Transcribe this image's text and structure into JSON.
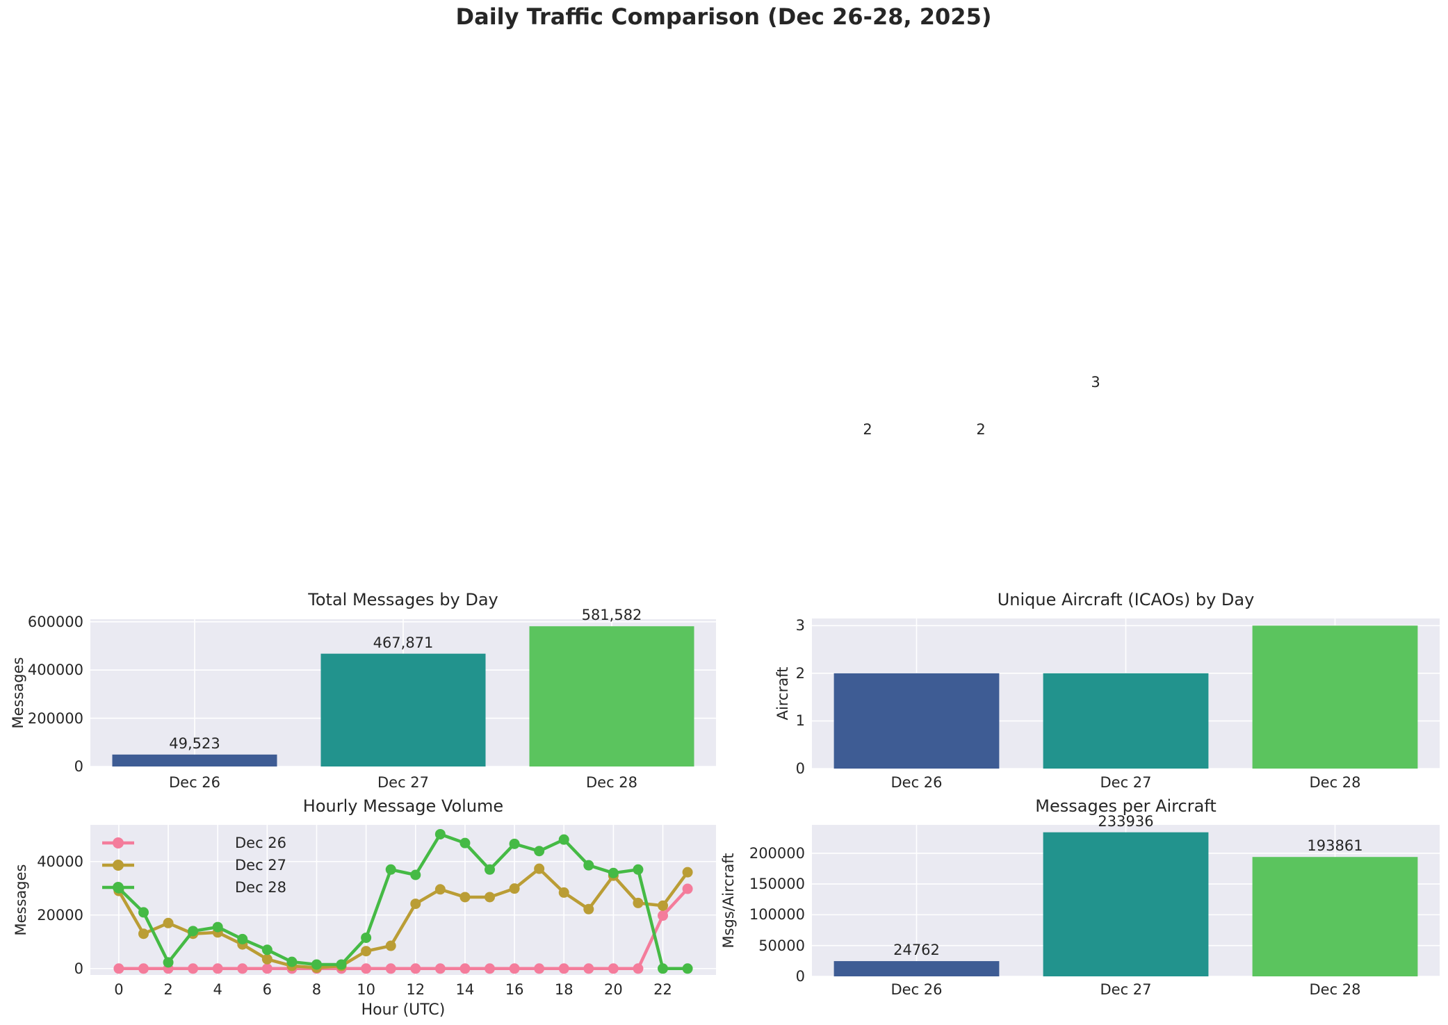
{
  "page_title": "Daily Traffic Comparison (Dec 26-28, 2025)",
  "floating_labels": [
    "2",
    "2",
    "3"
  ],
  "colors": {
    "figure_bg": "#FFFFFF",
    "plot_bg": "#EAEAF2",
    "grid": "#FFFFFF",
    "text": "#262626",
    "bar_palette": [
      "#3E5C94",
      "#22938D",
      "#5BC45E"
    ]
  },
  "chart_data": [
    {
      "id": "total_messages",
      "type": "bar",
      "title": "Total Messages by Day",
      "ylabel": "Messages",
      "categories": [
        "Dec 26",
        "Dec 27",
        "Dec 28"
      ],
      "values": [
        49523,
        467871,
        581582
      ],
      "value_labels": [
        "49,523",
        "467,871",
        "581,582"
      ],
      "yticks": [
        {
          "v": 0,
          "label": "0"
        },
        {
          "v": 200000,
          "label": "200000"
        },
        {
          "v": 400000,
          "label": "400000"
        },
        {
          "v": 600000,
          "label": "600000"
        }
      ],
      "ylim": [
        0,
        611000
      ],
      "grid": true
    },
    {
      "id": "unique_aircraft",
      "type": "bar",
      "title": "Unique Aircraft (ICAOs) by Day",
      "ylabel": "Aircraft",
      "categories": [
        "Dec 26",
        "Dec 27",
        "Dec 28"
      ],
      "values": [
        2,
        2,
        3
      ],
      "value_labels": [],
      "yticks": [
        {
          "v": 0,
          "label": "0"
        },
        {
          "v": 1,
          "label": "1"
        },
        {
          "v": 2,
          "label": "2"
        },
        {
          "v": 3,
          "label": "3"
        }
      ],
      "ylim": [
        0,
        3.15
      ],
      "grid": true,
      "note": "value labels 2, 2, 3 rendered detached far above the axes (see floating_labels)"
    },
    {
      "id": "hourly",
      "type": "line",
      "title": "Hourly Message Volume",
      "xlabel": "Hour (UTC)",
      "ylabel": "Messages",
      "x": [
        0,
        1,
        2,
        3,
        4,
        5,
        6,
        7,
        8,
        9,
        10,
        11,
        12,
        13,
        14,
        15,
        16,
        17,
        18,
        19,
        20,
        21,
        22,
        23
      ],
      "xticks": [
        {
          "v": 0,
          "label": "0"
        },
        {
          "v": 2,
          "label": "2"
        },
        {
          "v": 4,
          "label": "4"
        },
        {
          "v": 6,
          "label": "6"
        },
        {
          "v": 8,
          "label": "8"
        },
        {
          "v": 10,
          "label": "10"
        },
        {
          "v": 12,
          "label": "12"
        },
        {
          "v": 14,
          "label": "14"
        },
        {
          "v": 16,
          "label": "16"
        },
        {
          "v": 18,
          "label": "18"
        },
        {
          "v": 20,
          "label": "20"
        },
        {
          "v": 22,
          "label": "22"
        }
      ],
      "yticks": [
        {
          "v": 0,
          "label": "0"
        },
        {
          "v": 20000,
          "label": "20000"
        },
        {
          "v": 40000,
          "label": "40000"
        }
      ],
      "xlim": [
        -1.15,
        24.15
      ],
      "ylim": [
        -2400,
        53700
      ],
      "legend_position": "upper left",
      "series": [
        {
          "name": "Dec 26",
          "color": "#F47C9B",
          "values": [
            0,
            0,
            0,
            0,
            0,
            0,
            0,
            0,
            0,
            0,
            0,
            0,
            0,
            0,
            0,
            0,
            0,
            0,
            0,
            0,
            0,
            0,
            19800,
            29800
          ]
        },
        {
          "name": "Dec 27",
          "color": "#BA9D35",
          "values": [
            29000,
            13000,
            17000,
            13000,
            13500,
            9000,
            3500,
            1000,
            300,
            1000,
            6500,
            8500,
            24200,
            29600,
            26700,
            26700,
            29900,
            37300,
            28400,
            22200,
            34700,
            24500,
            23500,
            36000
          ]
        },
        {
          "name": "Dec 28",
          "color": "#45BA45",
          "values": [
            30000,
            21000,
            2300,
            14000,
            15500,
            11000,
            7000,
            2500,
            1500,
            1500,
            11500,
            37000,
            35000,
            50200,
            46900,
            37000,
            46600,
            43900,
            48200,
            38600,
            35700,
            37000,
            0,
            0
          ]
        }
      ]
    },
    {
      "id": "msgs_per_aircraft",
      "type": "bar",
      "title": "Messages per Aircraft",
      "ylabel": "Msgs/Aircraft",
      "categories": [
        "Dec 26",
        "Dec 27",
        "Dec 28"
      ],
      "values": [
        24762,
        233936,
        193861
      ],
      "value_labels": [
        "24762",
        "233936",
        "193861"
      ],
      "yticks": [
        {
          "v": 0,
          "label": "0"
        },
        {
          "v": 50000,
          "label": "50000"
        },
        {
          "v": 100000,
          "label": "100000"
        },
        {
          "v": 150000,
          "label": "150000"
        },
        {
          "v": 200000,
          "label": "200000"
        }
      ],
      "ylim": [
        0,
        246000
      ],
      "grid": true
    }
  ]
}
